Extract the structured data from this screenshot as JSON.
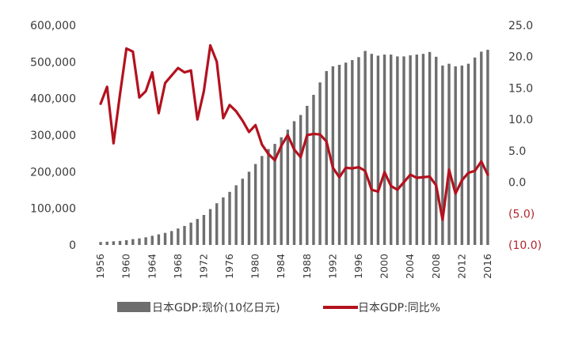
{
  "chart_data": {
    "type": "bar+line",
    "title": "",
    "xlabel": "",
    "ylabel_left": "",
    "ylabel_right": "",
    "x_tick_labels": [
      "1956",
      "1960",
      "1964",
      "1968",
      "1972",
      "1976",
      "1980",
      "1984",
      "1988",
      "1992",
      "1996",
      "2000",
      "2004",
      "2008",
      "2012",
      "2016"
    ],
    "left_axis": {
      "ylim": [
        0,
        600000
      ],
      "tick_values": [
        0,
        100000,
        200000,
        300000,
        400000,
        500000,
        600000
      ],
      "tick_labels": [
        "0",
        "100,000",
        "200,000",
        "300,000",
        "400,000",
        "500,000",
        "600,000"
      ]
    },
    "right_axis": {
      "ylim": [
        -10,
        25
      ],
      "tick_values": [
        -10,
        -5,
        0,
        5,
        10,
        15,
        20,
        25
      ],
      "tick_labels": [
        "(10.0)",
        "(5.0)",
        "0.0",
        "5.0",
        "10.0",
        "15.0",
        "20.0",
        "25.0"
      ],
      "negative_color": "#b3262e"
    },
    "years": [
      1956,
      1957,
      1958,
      1959,
      1960,
      1961,
      1962,
      1963,
      1964,
      1965,
      1966,
      1967,
      1968,
      1969,
      1970,
      1971,
      1972,
      1973,
      1974,
      1975,
      1976,
      1977,
      1978,
      1979,
      1980,
      1981,
      1982,
      1983,
      1984,
      1985,
      1986,
      1987,
      1988,
      1989,
      1990,
      1991,
      1992,
      1993,
      1994,
      1995,
      1996,
      1997,
      1998,
      1999,
      2000,
      2001,
      2002,
      2003,
      2004,
      2005,
      2006,
      2007,
      2008,
      2009,
      2010,
      2011,
      2012,
      2013,
      2014,
      2015,
      2016
    ],
    "series": [
      {
        "name": "日本GDP:现价(10亿日元)",
        "type": "bar",
        "axis": "left",
        "color": "#6e6e6e",
        "values": [
          8000,
          9000,
          10000,
          11000,
          13000,
          16000,
          18000,
          21000,
          25000,
          29000,
          33000,
          38000,
          45000,
          52000,
          61000,
          71000,
          82000,
          98000,
          114000,
          130000,
          145000,
          163000,
          181000,
          200000,
          221000,
          243000,
          262000,
          276000,
          294000,
          315000,
          338000,
          355000,
          380000,
          410000,
          444000,
          475000,
          488000,
          492000,
          498000,
          505000,
          513000,
          530000,
          522000,
          517000,
          520000,
          520000,
          515000,
          515000,
          518000,
          520000,
          522000,
          527000,
          514000,
          490000,
          495000,
          488000,
          490000,
          495000,
          512000,
          528000,
          533000
        ]
      },
      {
        "name": "日本GDP:同比%",
        "type": "line",
        "axis": "right",
        "color": "#b3121f",
        "values": [
          12.5,
          15.2,
          6.2,
          14.0,
          21.3,
          20.8,
          13.5,
          14.5,
          17.5,
          11.0,
          15.8,
          17.0,
          18.2,
          17.5,
          17.8,
          10.0,
          14.5,
          21.8,
          19.2,
          10.2,
          12.3,
          11.3,
          9.8,
          8.0,
          9.1,
          6.0,
          4.5,
          3.5,
          5.8,
          7.5,
          5.2,
          4.0,
          7.5,
          7.7,
          7.6,
          6.5,
          2.3,
          0.8,
          2.3,
          2.2,
          2.4,
          1.8,
          -1.2,
          -1.5,
          1.6,
          -0.6,
          -1.2,
          0.0,
          1.2,
          0.7,
          0.8,
          0.9,
          -0.5,
          -6.0,
          2.0,
          -1.8,
          0.3,
          1.5,
          1.8,
          3.3,
          1.2
        ]
      }
    ],
    "legend_position": "bottom",
    "grid": false
  }
}
